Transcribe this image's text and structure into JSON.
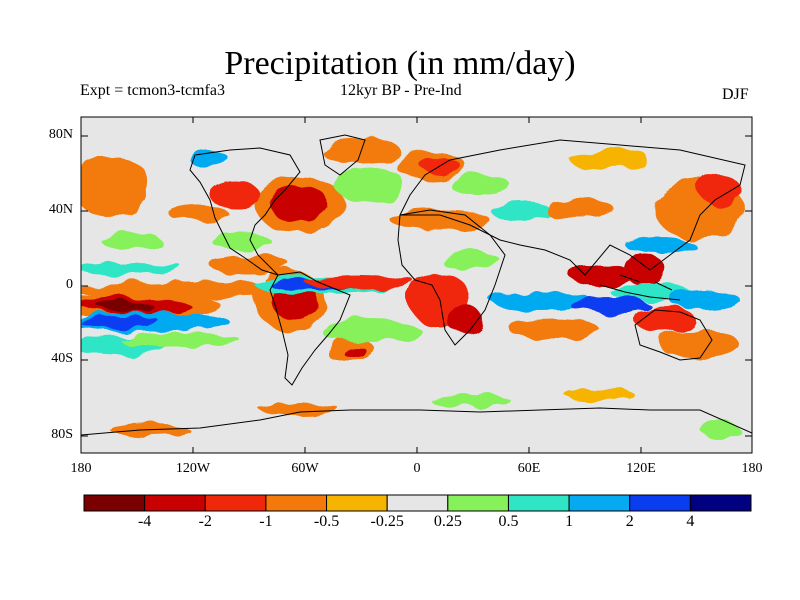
{
  "title": "Precipitation (in mm/day)",
  "subtitle_left": "Expt = tcmon3-tcmfa3",
  "subtitle_center": "12kyr BP - Pre-Ind",
  "season": "DJF",
  "y_ticks": [
    "80N",
    "40N",
    "0",
    "40S",
    "80S"
  ],
  "x_ticks": [
    "180",
    "120W",
    "60W",
    "0",
    "60E",
    "120E",
    "180"
  ],
  "colorbar": {
    "colors": [
      "#7a0000",
      "#c80000",
      "#f0280a",
      "#f37a0a",
      "#f6b400",
      "#e6e6e6",
      "#86f15a",
      "#2ee6c6",
      "#05aaf0",
      "#0a3cf0",
      "#000080"
    ],
    "labels": [
      "-4",
      "-2",
      "-1",
      "-0.5",
      "-0.25",
      "0.25",
      "0.5",
      "1",
      "2",
      "4"
    ]
  }
}
